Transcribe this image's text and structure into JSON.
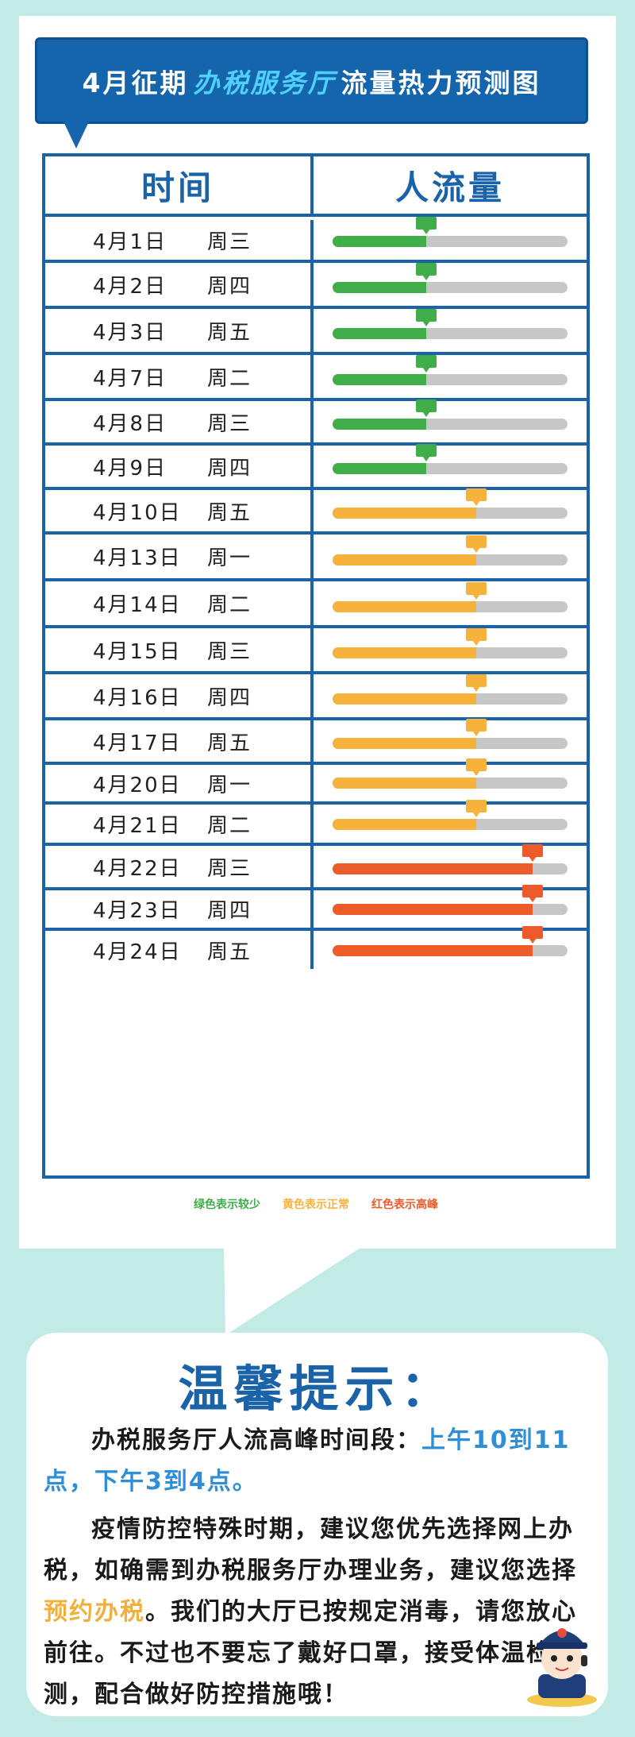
{
  "title": {
    "prefix": "4月征期",
    "highlight": "办税服务厅",
    "suffix": "流量热力预测图"
  },
  "table": {
    "headers": {
      "time": "时间",
      "flow": "人流量"
    },
    "rows": [
      {
        "date": "4月1日",
        "weekday": "周三",
        "level": "low",
        "fill": 0.4
      },
      {
        "date": "4月2日",
        "weekday": "周四",
        "level": "low",
        "fill": 0.4
      },
      {
        "date": "4月3日",
        "weekday": "周五",
        "level": "low",
        "fill": 0.4
      },
      {
        "date": "4月7日",
        "weekday": "周二",
        "level": "low",
        "fill": 0.4
      },
      {
        "date": "4月8日",
        "weekday": "周三",
        "level": "low",
        "fill": 0.4
      },
      {
        "date": "4月9日",
        "weekday": "周四",
        "level": "low",
        "fill": 0.4
      },
      {
        "date": "4月10日",
        "weekday": "周五",
        "level": "normal",
        "fill": 0.61
      },
      {
        "date": "4月13日",
        "weekday": "周一",
        "level": "normal",
        "fill": 0.61
      },
      {
        "date": "4月14日",
        "weekday": "周二",
        "level": "normal",
        "fill": 0.61
      },
      {
        "date": "4月15日",
        "weekday": "周三",
        "level": "normal",
        "fill": 0.61
      },
      {
        "date": "4月16日",
        "weekday": "周四",
        "level": "normal",
        "fill": 0.61
      },
      {
        "date": "4月17日",
        "weekday": "周五",
        "level": "normal",
        "fill": 0.61
      },
      {
        "date": "4月20日",
        "weekday": "周一",
        "level": "normal",
        "fill": 0.61
      },
      {
        "date": "4月21日",
        "weekday": "周二",
        "level": "normal",
        "fill": 0.61
      },
      {
        "date": "4月22日",
        "weekday": "周三",
        "level": "high",
        "fill": 0.85
      },
      {
        "date": "4月23日",
        "weekday": "周四",
        "level": "high",
        "fill": 0.85
      },
      {
        "date": "4月24日",
        "weekday": "周五",
        "level": "high",
        "fill": 0.85
      }
    ]
  },
  "colors": {
    "low": "#3fae49",
    "normal": "#f7b23b",
    "high": "#ec5b29",
    "track": "#c7c7c7",
    "brand_blue": "#1b63a8"
  },
  "legend": [
    {
      "label": "绿色表示较少",
      "level": "low"
    },
    {
      "label": "黄色表示正常",
      "level": "normal"
    },
    {
      "label": "红色表示高峰",
      "level": "high"
    }
  ],
  "tip": {
    "title": "温馨提示：",
    "p1_lead": "办税服务厅人流高峰时间段：",
    "p1_highlight": "上午10到11点，下午3到4点。",
    "p2_a": "疫情防控特殊时期，建议您优先选择网上办税，如确需到办税服务厅办理业务，建议您选择",
    "p2_highlight": "预约办税",
    "p2_b": "。我们的大厅已按规定消毒，请您放心前往。不过也不要忘了戴好口罩，接受体温检测，配合做好防控措施哦！"
  }
}
